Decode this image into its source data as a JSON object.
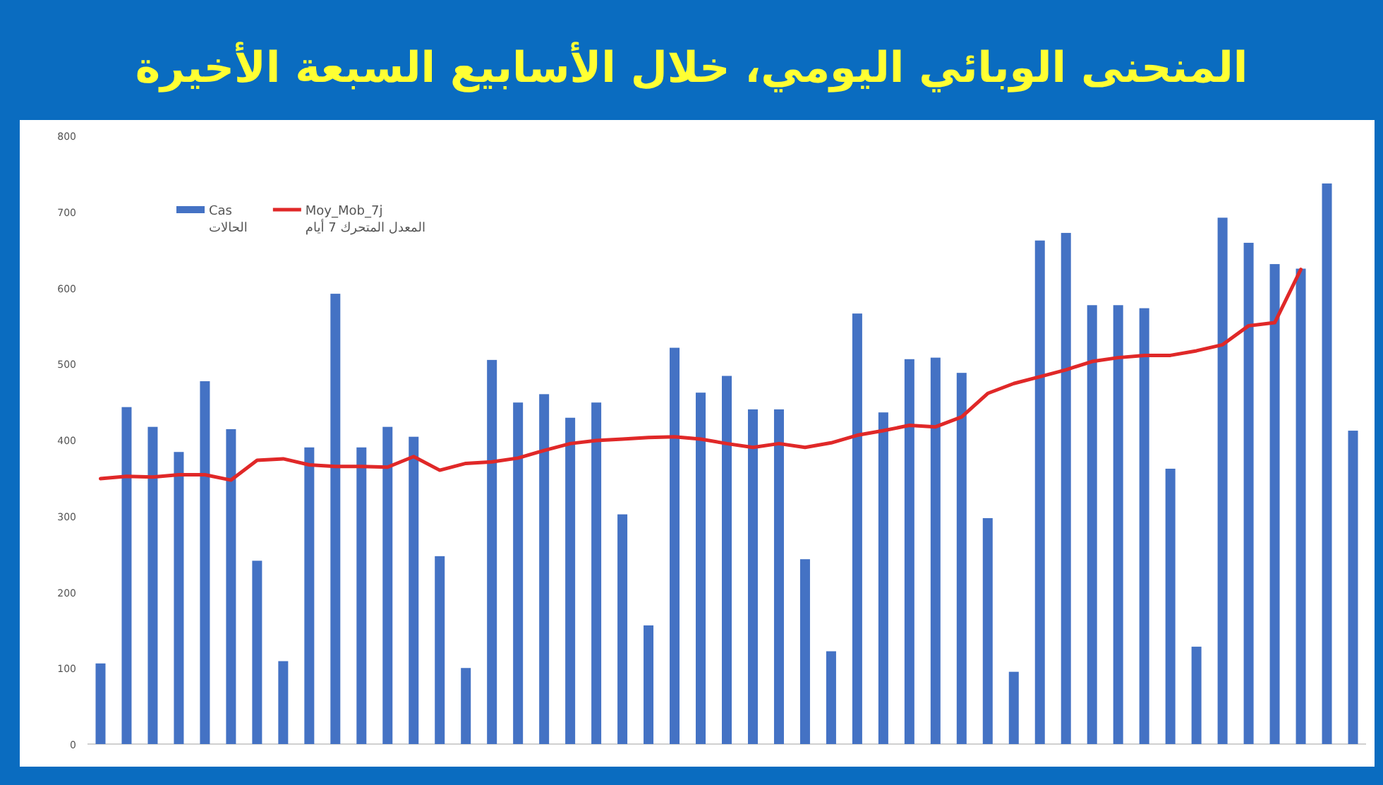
{
  "chart_data": {
    "type": "bar",
    "title": "المنحنى الوبائي اليومي، خلال الأسابيع السبعة الأخيرة",
    "categories": [
      null,
      null,
      null,
      null,
      null,
      null,
      null,
      null,
      null,
      null,
      null,
      null,
      null,
      null,
      null,
      null,
      null,
      null,
      null,
      null,
      null,
      null,
      null,
      null,
      null,
      null,
      null,
      null,
      null,
      null,
      null,
      null,
      null,
      null,
      null,
      null,
      null,
      null,
      null,
      null,
      null,
      null,
      null,
      null,
      null,
      null,
      null,
      null,
      null
    ],
    "series": [
      {
        "name": "Cas\nالحالات",
        "color": "#4472c4",
        "values": [
          106,
          443,
          417,
          384,
          477,
          414,
          241,
          109,
          390,
          592,
          390,
          417,
          404,
          247,
          100,
          505,
          449,
          460,
          429,
          449,
          302,
          156,
          521,
          462,
          484,
          440,
          440,
          243,
          122,
          566,
          436,
          506,
          508,
          488,
          297,
          95,
          662,
          672,
          577,
          577,
          573,
          362,
          128,
          692,
          659,
          631,
          625,
          737,
          412
        ]
      },
      {
        "name": "Moy_Mob_7j\nالمعدل المتحرك 7 أيام",
        "type": "line",
        "color": "#e02828",
        "values": [
          349,
          352,
          351,
          354,
          354,
          347,
          373,
          375,
          367,
          365,
          365,
          364,
          378,
          360,
          369,
          371,
          376,
          386,
          395,
          399,
          401,
          403,
          404,
          401,
          395,
          390,
          395,
          390,
          396,
          406,
          412,
          419,
          417,
          430,
          461,
          474,
          483,
          492,
          503,
          508,
          511,
          511,
          517,
          525,
          550,
          554,
          624,
          null,
          null
        ]
      }
    ],
    "ylim": [
      0,
      800
    ],
    "yticks": [
      0,
      100,
      200,
      300,
      400,
      500,
      600,
      700,
      800
    ],
    "grid": false,
    "legend": "top left"
  }
}
